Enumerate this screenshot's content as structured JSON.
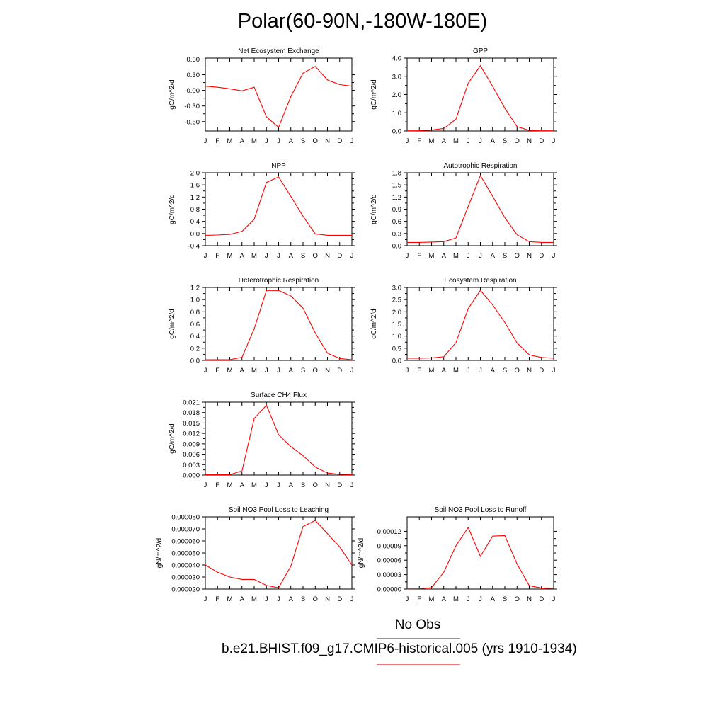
{
  "title": "Polar(60-90N,-180W-180E)",
  "colors": {
    "model": "#ff0000",
    "obs": "#0000ff"
  },
  "legend": {
    "obs_label": "No Obs",
    "model_label": "b.e21.BHIST.f09_g17.CMIP6-historical.005 (yrs 1910-1934)"
  },
  "chart_data": [
    {
      "type": "line",
      "title": "Net Ecosystem Exchange",
      "ylabel": "gC/m^2/d",
      "categories": [
        "J",
        "F",
        "M",
        "A",
        "M",
        "J",
        "J",
        "A",
        "S",
        "O",
        "N",
        "D",
        "J"
      ],
      "ylim": [
        -0.78,
        0.62
      ],
      "yticks": [
        0.6,
        0.3,
        0.0,
        -0.3,
        -0.6
      ],
      "yticklabels": [
        "0.60",
        "0.30",
        "0.00",
        "-0.30",
        "-0.60"
      ],
      "values": [
        0.08,
        0.06,
        0.03,
        -0.01,
        0.06,
        -0.51,
        -0.71,
        -0.12,
        0.33,
        0.46,
        0.2,
        0.11,
        0.08
      ]
    },
    {
      "type": "line",
      "title": "GPP",
      "ylabel": "gC/m^2/d",
      "categories": [
        "J",
        "F",
        "M",
        "A",
        "M",
        "J",
        "J",
        "A",
        "S",
        "O",
        "N",
        "D",
        "J"
      ],
      "ylim": [
        0,
        4.0
      ],
      "yticks": [
        0,
        1,
        2,
        3,
        4
      ],
      "yticklabels": [
        "0.0",
        "1.0",
        "2.0",
        "3.0",
        "4.0"
      ],
      "values": [
        0.01,
        0.02,
        0.05,
        0.14,
        0.65,
        2.62,
        3.58,
        2.45,
        1.25,
        0.24,
        0.03,
        0.01,
        0.01
      ]
    },
    {
      "type": "line",
      "title": "NPP",
      "ylabel": "gC/m^2/d",
      "categories": [
        "J",
        "F",
        "M",
        "A",
        "M",
        "J",
        "J",
        "A",
        "S",
        "O",
        "N",
        "D",
        "J"
      ],
      "ylim": [
        -0.4,
        2.0
      ],
      "yticks": [
        2.0,
        1.6,
        1.2,
        0.8,
        0.4,
        0.0,
        -0.4
      ],
      "yticklabels": [
        "2.0",
        "1.6",
        "1.2",
        "0.8",
        "0.4",
        "0.0",
        "-0.4"
      ],
      "values": [
        -0.06,
        -0.05,
        -0.03,
        0.07,
        0.47,
        1.68,
        1.86,
        1.22,
        0.57,
        -0.01,
        -0.06,
        -0.06,
        -0.06
      ]
    },
    {
      "type": "line",
      "title": "Autotrophic Respiration",
      "ylabel": "gC/m^2/d",
      "categories": [
        "J",
        "F",
        "M",
        "A",
        "M",
        "J",
        "J",
        "A",
        "S",
        "O",
        "N",
        "D",
        "J"
      ],
      "ylim": [
        0,
        1.8
      ],
      "yticks": [
        1.8,
        1.5,
        1.2,
        0.9,
        0.6,
        0.3,
        0.0
      ],
      "yticklabels": [
        "1.8",
        "1.5",
        "1.2",
        "0.9",
        "0.6",
        "0.3",
        "0.0"
      ],
      "values": [
        0.08,
        0.08,
        0.09,
        0.1,
        0.19,
        0.97,
        1.73,
        1.22,
        0.69,
        0.27,
        0.1,
        0.08,
        0.08
      ]
    },
    {
      "type": "line",
      "title": "Heterotrophic Respiration",
      "ylabel": "gC/m^2/d",
      "categories": [
        "J",
        "F",
        "M",
        "A",
        "M",
        "J",
        "J",
        "A",
        "S",
        "O",
        "N",
        "D",
        "J"
      ],
      "ylim": [
        0,
        1.2
      ],
      "yticks": [
        1.2,
        1.0,
        0.8,
        0.6,
        0.4,
        0.2,
        0.0
      ],
      "yticklabels": [
        "1.2",
        "1.0",
        "0.8",
        "0.6",
        "0.4",
        "0.2",
        "0.0"
      ],
      "values": [
        0.01,
        0.01,
        0.01,
        0.05,
        0.52,
        1.15,
        1.15,
        1.06,
        0.86,
        0.45,
        0.12,
        0.03,
        0.01
      ]
    },
    {
      "type": "line",
      "title": "Ecosystem Respiration",
      "ylabel": "gC/m^2/d",
      "categories": [
        "J",
        "F",
        "M",
        "A",
        "M",
        "J",
        "J",
        "A",
        "S",
        "O",
        "N",
        "D",
        "J"
      ],
      "ylim": [
        0,
        3.0
      ],
      "yticks": [
        3.0,
        2.5,
        2.0,
        1.5,
        1.0,
        0.5,
        0.0
      ],
      "yticklabels": [
        "3.0",
        "2.5",
        "2.0",
        "1.5",
        "1.0",
        "0.5",
        "0.0"
      ],
      "values": [
        0.09,
        0.09,
        0.1,
        0.15,
        0.73,
        2.13,
        2.88,
        2.28,
        1.56,
        0.72,
        0.23,
        0.12,
        0.09
      ]
    },
    {
      "type": "line",
      "title": "Surface CH4 Flux",
      "ylabel": "gC/m^2/d",
      "categories": [
        "J",
        "F",
        "M",
        "A",
        "M",
        "J",
        "J",
        "A",
        "S",
        "O",
        "N",
        "D",
        "J"
      ],
      "ylim": [
        0,
        0.021
      ],
      "yticks": [
        0.021,
        0.018,
        0.015,
        0.012,
        0.009,
        0.006,
        0.003,
        0.0
      ],
      "yticklabels": [
        "0.021",
        "0.018",
        "0.015",
        "0.012",
        "0.009",
        "0.006",
        "0.003",
        "0.000"
      ],
      "values": [
        0.0001,
        0.0001,
        0.0001,
        0.0012,
        0.0163,
        0.0201,
        0.0116,
        0.0082,
        0.0056,
        0.0023,
        0.0006,
        0.0002,
        0.0001
      ]
    },
    {
      "type": "line",
      "title": "Soil NO3 Pool Loss to Leaching",
      "ylabel": "gN/m^2/d",
      "categories": [
        "J",
        "F",
        "M",
        "A",
        "M",
        "J",
        "J",
        "A",
        "S",
        "O",
        "N",
        "D",
        "J"
      ],
      "ylim": [
        2e-05,
        8e-05
      ],
      "yticks": [
        8e-05,
        7e-05,
        6e-05,
        5e-05,
        4e-05,
        3e-05,
        2e-05
      ],
      "yticklabels": [
        "0.000080",
        "0.000070",
        "0.000060",
        "0.000050",
        "0.000040",
        "0.000030",
        "0.000020"
      ],
      "values": [
        4e-05,
        3.4e-05,
        3e-05,
        2.8e-05,
        2.8e-05,
        2.3e-05,
        2.1e-05,
        3.9e-05,
        7.2e-05,
        7.7e-05,
        6.6e-05,
        5.5e-05,
        4e-05
      ]
    },
    {
      "type": "line",
      "title": "Soil NO3 Pool Loss to Runoff",
      "ylabel": "gN/m^2/d",
      "categories": [
        "J",
        "F",
        "M",
        "A",
        "M",
        "J",
        "J",
        "A",
        "S",
        "O",
        "N",
        "D",
        "J"
      ],
      "ylim": [
        0,
        0.00015
      ],
      "yticks": [
        0.00012,
        9e-05,
        6e-05,
        3e-05,
        0.0
      ],
      "yticklabels": [
        "0.00012",
        "0.00009",
        "0.00006",
        "0.00003",
        "0.00000"
      ],
      "values": [
        5e-07,
        7e-07,
        3e-06,
        3.5e-05,
        9e-05,
        0.000128,
        6.8e-05,
        0.00011,
        0.000111,
        5.2e-05,
        7e-06,
        2e-06,
        1e-06
      ]
    }
  ]
}
